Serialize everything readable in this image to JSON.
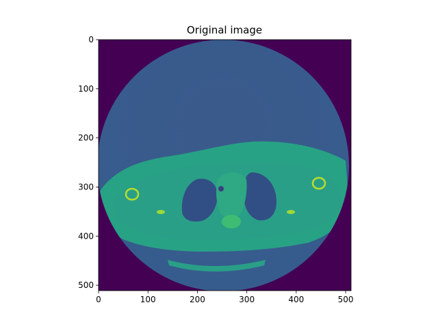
{
  "figure": {
    "title": "Original image",
    "colors": {
      "background": "#440154",
      "air": "#3b5a8c",
      "soft_tissue": "#27a383",
      "lung": "#304f85",
      "bone": "#b8de29",
      "axes": "#000000"
    }
  },
  "chart_data": {
    "type": "heatmap",
    "title": "Original image",
    "xlabel": "",
    "ylabel": "",
    "xlim": [
      0,
      511
    ],
    "ylim": [
      511,
      0
    ],
    "x_ticks": [
      0,
      100,
      200,
      300,
      400,
      500
    ],
    "y_ticks": [
      0,
      100,
      200,
      300,
      400,
      500
    ],
    "colormap": "viridis",
    "image_size": [
      512,
      512
    ],
    "content": "axial CT slice of chest (thorax) within circular field of view"
  }
}
